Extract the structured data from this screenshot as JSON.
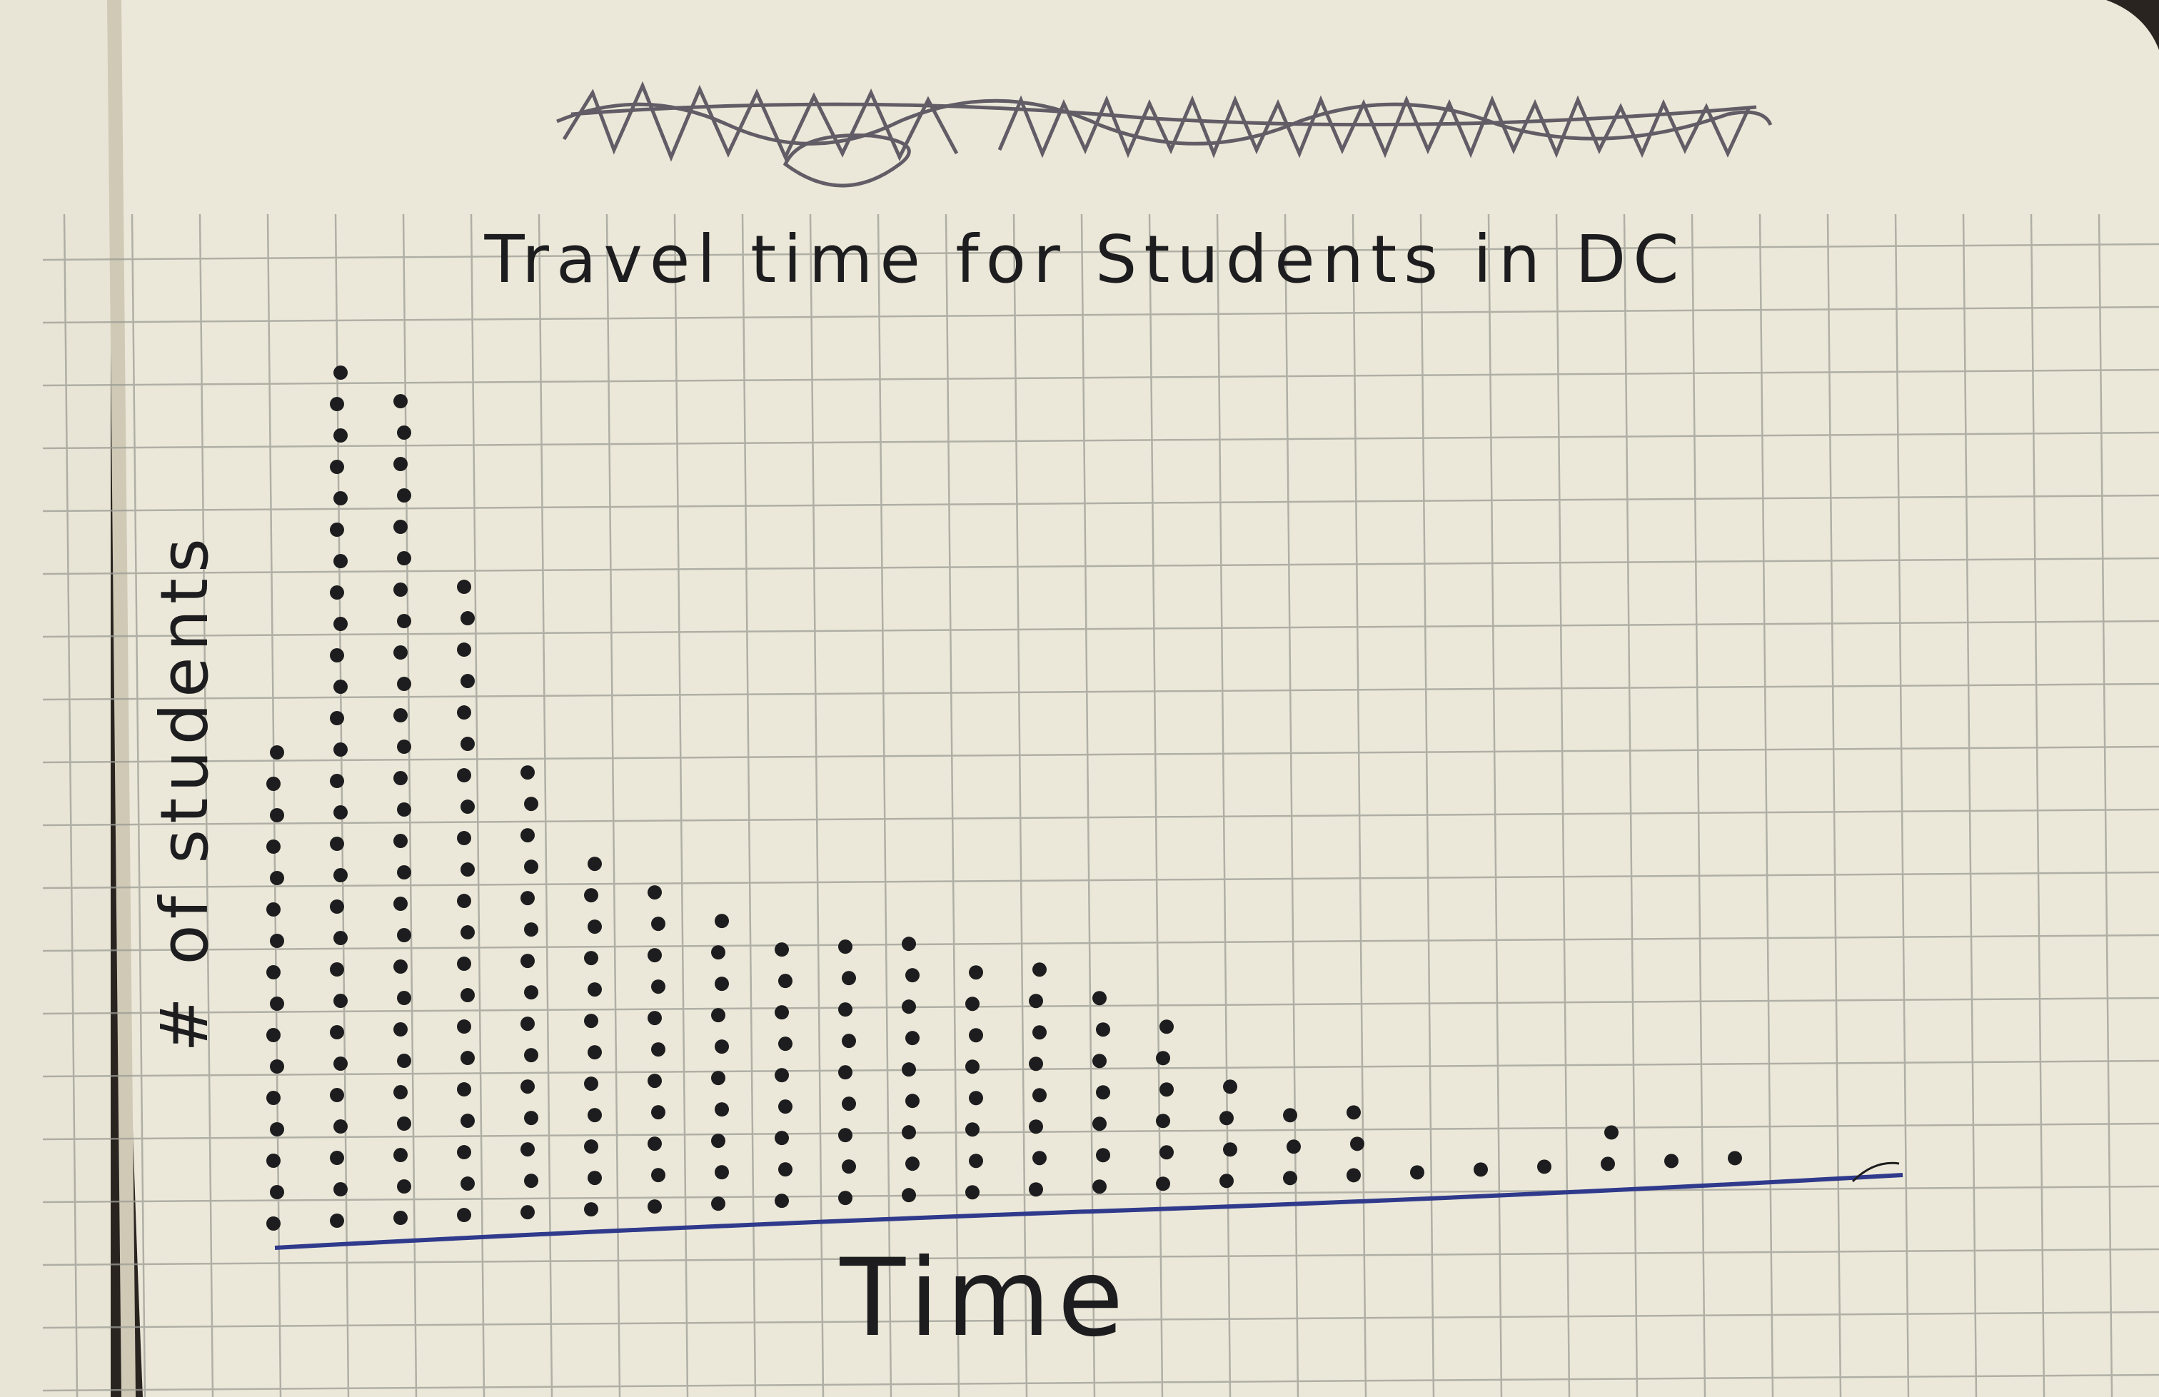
{
  "colors": {
    "paper": "#ece8d9",
    "grid": "#9c9c94",
    "ink": "#1d1d1f",
    "axis_line": "#2f3a8c",
    "background": "#2a2420"
  },
  "chart_data": {
    "type": "scatter",
    "style": "dot plot",
    "title": "Travel time for Students in DC",
    "xlabel": "Time",
    "ylabel": "# of students",
    "x_tick_labels": [],
    "grid": true,
    "legend": "none",
    "columns": [
      {
        "column": 1,
        "count": 16
      },
      {
        "column": 2,
        "count": 28
      },
      {
        "column": 3,
        "count": 27
      },
      {
        "column": 4,
        "count": 21
      },
      {
        "column": 5,
        "count": 15
      },
      {
        "column": 6,
        "count": 12
      },
      {
        "column": 7,
        "count": 11
      },
      {
        "column": 8,
        "count": 10
      },
      {
        "column": 9,
        "count": 9
      },
      {
        "column": 10,
        "count": 9
      },
      {
        "column": 11,
        "count": 9
      },
      {
        "column": 12,
        "count": 8
      },
      {
        "column": 13,
        "count": 8
      },
      {
        "column": 14,
        "count": 7
      },
      {
        "column": 15,
        "count": 6
      },
      {
        "column": 16,
        "count": 4
      },
      {
        "column": 17,
        "count": 3
      },
      {
        "column": 18,
        "count": 3
      },
      {
        "column": 19,
        "count": 1
      },
      {
        "column": 20,
        "count": 1
      },
      {
        "column": 21,
        "count": 1
      },
      {
        "column": 22,
        "count": 2
      },
      {
        "column": 23,
        "count": 1
      },
      {
        "column": 24,
        "count": 1
      }
    ]
  }
}
